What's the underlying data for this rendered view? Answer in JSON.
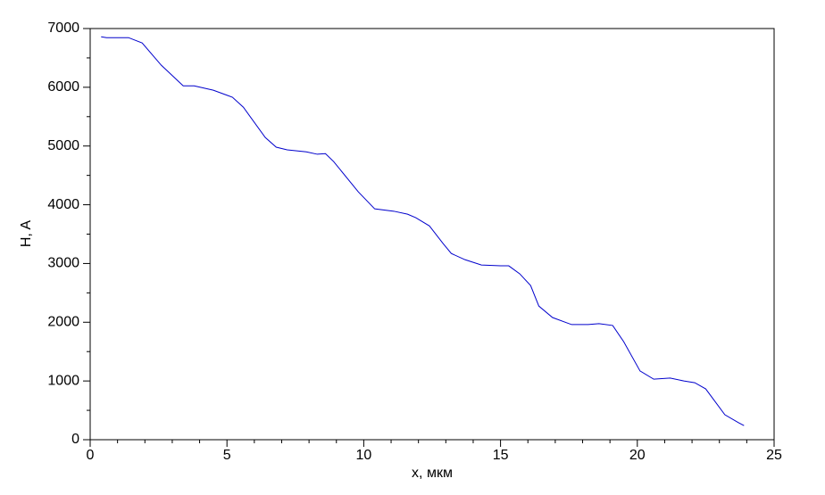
{
  "chart_data": {
    "type": "line",
    "x_label": "x, мкм",
    "y_label": "H, A",
    "xlim": [
      0,
      25
    ],
    "ylim": [
      0,
      7000
    ],
    "xticks": [
      0,
      5,
      10,
      15,
      20,
      25
    ],
    "yticks": [
      0,
      1000,
      2000,
      3000,
      4000,
      5000,
      6000,
      7000
    ],
    "xminorticks": [
      1,
      2,
      3,
      4,
      6,
      7,
      8,
      9,
      11,
      12,
      13,
      14,
      16,
      17,
      18,
      19,
      21,
      22,
      23,
      24
    ],
    "yminorticks": [
      500,
      1500,
      2500,
      3500,
      4500,
      5500,
      6500
    ],
    "grid": false,
    "series": [
      {
        "color": "#0000cc",
        "x": [
          0.4,
          0.6,
          1.4,
          1.9,
          2.6,
          3.4,
          3.8,
          4.5,
          5.2,
          5.6,
          6.4,
          6.8,
          7.2,
          7.9,
          8.3,
          8.6,
          8.9,
          9.8,
          10.4,
          11.1,
          11.6,
          11.9,
          12.4,
          12.9,
          13.2,
          13.7,
          14.3,
          15.0,
          15.3,
          15.7,
          16.1,
          16.4,
          16.9,
          17.6,
          18.2,
          18.6,
          19.1,
          19.5,
          20.1,
          20.6,
          21.2,
          21.7,
          22.1,
          22.5,
          23.2,
          23.7,
          23.9
        ],
        "values": [
          6860,
          6845,
          6845,
          6755,
          6375,
          6025,
          6025,
          5950,
          5830,
          5660,
          5145,
          4980,
          4935,
          4900,
          4860,
          4870,
          4735,
          4220,
          3930,
          3890,
          3840,
          3780,
          3640,
          3340,
          3170,
          3065,
          2975,
          2960,
          2960,
          2825,
          2625,
          2275,
          2080,
          1960,
          1960,
          1975,
          1945,
          1670,
          1170,
          1030,
          1050,
          1000,
          970,
          865,
          425,
          290,
          240
        ]
      }
    ]
  }
}
